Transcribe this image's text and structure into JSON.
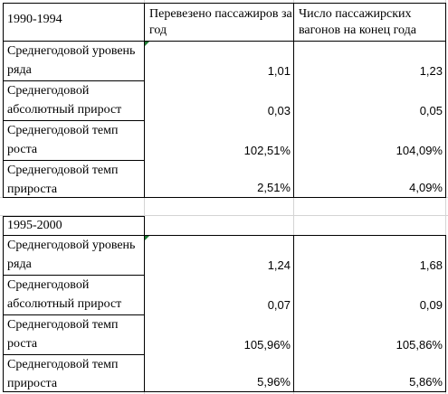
{
  "header": {
    "col1": "Перевезено пассажиров за год",
    "col2": "Число пассажирских вагонов на конец года"
  },
  "blocks": [
    {
      "period": "1990-1994",
      "rows": [
        {
          "label": "Среднегодовой уровень ряда",
          "v1": "1,01",
          "v2": "1,23"
        },
        {
          "label": "Среднегодовой абсолютный прирост",
          "v1": "0,03",
          "v2": "0,05"
        },
        {
          "label": "Среднегодовой темп роста",
          "v1": "102,51%",
          "v2": "104,09%"
        },
        {
          "label": "Среднегодовой темп прироста",
          "v1": "2,51%",
          "v2": "4,09%"
        }
      ]
    },
    {
      "period": "1995-2000",
      "rows": [
        {
          "label": "Среднегодовой уровень ряда",
          "v1": "1,24",
          "v2": "1,68"
        },
        {
          "label": "Среднегодовой абсолютный прирост",
          "v1": "0,07",
          "v2": "0,09"
        },
        {
          "label": "Среднегодовой темп роста",
          "v1": "105,96%",
          "v2": "105,86%"
        },
        {
          "label": "Среднегодовой темп прироста",
          "v1": "5,96%",
          "v2": "5,86%"
        }
      ]
    }
  ]
}
